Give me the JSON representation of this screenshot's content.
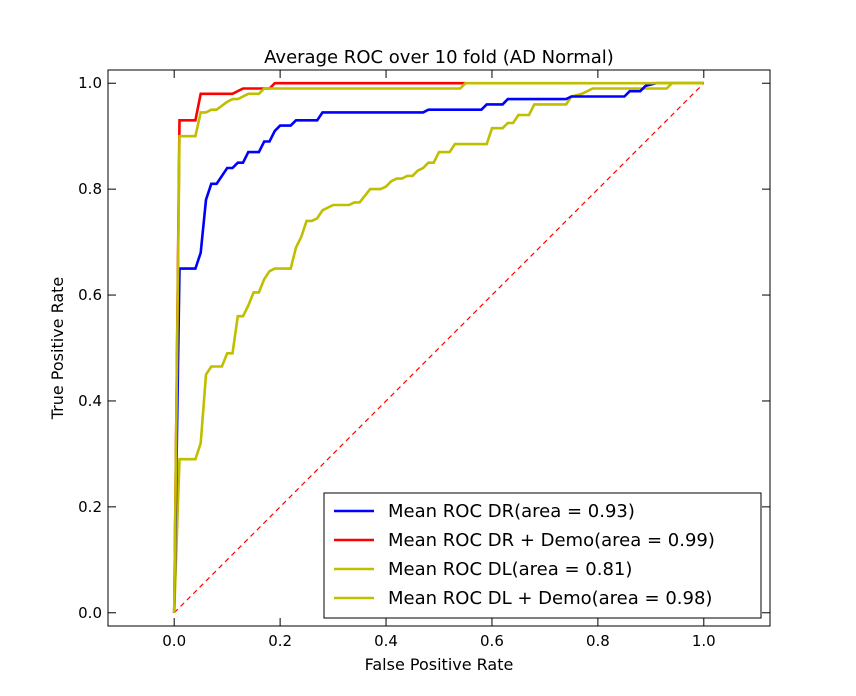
{
  "chart_data": {
    "type": "line",
    "title": "Average ROC over 10 fold (AD Normal)",
    "xlabel": "False Positive Rate",
    "ylabel": "True Positive Rate",
    "xlim": [
      -0.125,
      1.125
    ],
    "ylim": [
      -0.025,
      1.025
    ],
    "x_ticks": [
      "0.0",
      "0.2",
      "0.4",
      "0.6",
      "0.8",
      "1.0"
    ],
    "y_ticks": [
      "0.0",
      "0.2",
      "0.4",
      "0.6",
      "0.8",
      "1.0"
    ],
    "grid": false,
    "legend_position": "lower-right",
    "diagonal": {
      "points": [
        [
          0,
          0
        ],
        [
          1,
          1
        ]
      ],
      "color": "#ff0000",
      "style": "dashed"
    },
    "series": [
      {
        "name": "Mean ROC DR(area = 0.93)",
        "color": "#0000ff",
        "points": [
          [
            0,
            0
          ],
          [
            0.01,
            0.65
          ],
          [
            0.04,
            0.65
          ],
          [
            0.05,
            0.68
          ],
          [
            0.06,
            0.78
          ],
          [
            0.07,
            0.81
          ],
          [
            0.08,
            0.81
          ],
          [
            0.1,
            0.84
          ],
          [
            0.11,
            0.84
          ],
          [
            0.12,
            0.85
          ],
          [
            0.13,
            0.85
          ],
          [
            0.14,
            0.87
          ],
          [
            0.16,
            0.87
          ],
          [
            0.17,
            0.89
          ],
          [
            0.18,
            0.89
          ],
          [
            0.19,
            0.91
          ],
          [
            0.2,
            0.92
          ],
          [
            0.22,
            0.92
          ],
          [
            0.23,
            0.93
          ],
          [
            0.27,
            0.93
          ],
          [
            0.28,
            0.945
          ],
          [
            0.47,
            0.945
          ],
          [
            0.48,
            0.95
          ],
          [
            0.58,
            0.95
          ],
          [
            0.59,
            0.96
          ],
          [
            0.62,
            0.96
          ],
          [
            0.63,
            0.97
          ],
          [
            0.74,
            0.97
          ],
          [
            0.75,
            0.975
          ],
          [
            0.85,
            0.975
          ],
          [
            0.86,
            0.985
          ],
          [
            0.88,
            0.985
          ],
          [
            0.89,
            0.995
          ],
          [
            0.91,
            1.0
          ],
          [
            1.0,
            1.0
          ]
        ]
      },
      {
        "name": "Mean ROC DR + Demo(area = 0.99)",
        "color": "#ff0000",
        "points": [
          [
            0,
            0
          ],
          [
            0.01,
            0.93
          ],
          [
            0.04,
            0.93
          ],
          [
            0.05,
            0.98
          ],
          [
            0.11,
            0.98
          ],
          [
            0.13,
            0.99
          ],
          [
            0.18,
            0.99
          ],
          [
            0.19,
            1.0
          ],
          [
            0.55,
            1.0
          ]
        ]
      },
      {
        "name": "Mean ROC DL(area = 0.81)",
        "color": "#bfbf00",
        "points": [
          [
            0,
            0
          ],
          [
            0.01,
            0.29
          ],
          [
            0.04,
            0.29
          ],
          [
            0.05,
            0.32
          ],
          [
            0.06,
            0.45
          ],
          [
            0.07,
            0.465
          ],
          [
            0.09,
            0.465
          ],
          [
            0.1,
            0.49
          ],
          [
            0.11,
            0.49
          ],
          [
            0.12,
            0.56
          ],
          [
            0.13,
            0.56
          ],
          [
            0.14,
            0.58
          ],
          [
            0.15,
            0.605
          ],
          [
            0.16,
            0.605
          ],
          [
            0.17,
            0.63
          ],
          [
            0.18,
            0.645
          ],
          [
            0.19,
            0.65
          ],
          [
            0.22,
            0.65
          ],
          [
            0.23,
            0.69
          ],
          [
            0.24,
            0.71
          ],
          [
            0.25,
            0.74
          ],
          [
            0.26,
            0.74
          ],
          [
            0.27,
            0.745
          ],
          [
            0.28,
            0.76
          ],
          [
            0.3,
            0.77
          ],
          [
            0.33,
            0.77
          ],
          [
            0.34,
            0.775
          ],
          [
            0.35,
            0.775
          ],
          [
            0.37,
            0.8
          ],
          [
            0.39,
            0.8
          ],
          [
            0.4,
            0.805
          ],
          [
            0.41,
            0.815
          ],
          [
            0.42,
            0.82
          ],
          [
            0.43,
            0.82
          ],
          [
            0.44,
            0.825
          ],
          [
            0.45,
            0.825
          ],
          [
            0.46,
            0.835
          ],
          [
            0.47,
            0.84
          ],
          [
            0.48,
            0.85
          ],
          [
            0.49,
            0.85
          ],
          [
            0.5,
            0.87
          ],
          [
            0.52,
            0.87
          ],
          [
            0.53,
            0.885
          ],
          [
            0.59,
            0.885
          ],
          [
            0.6,
            0.915
          ],
          [
            0.62,
            0.915
          ],
          [
            0.63,
            0.925
          ],
          [
            0.64,
            0.925
          ],
          [
            0.65,
            0.94
          ],
          [
            0.67,
            0.94
          ],
          [
            0.68,
            0.96
          ],
          [
            0.74,
            0.96
          ],
          [
            0.75,
            0.975
          ],
          [
            0.77,
            0.98
          ],
          [
            0.79,
            0.99
          ],
          [
            0.93,
            0.99
          ],
          [
            0.94,
            1.0
          ],
          [
            1.0,
            1.0
          ]
        ]
      },
      {
        "name": "Mean ROC DL + Demo(area = 0.98)",
        "color": "#bfbf00",
        "points": [
          [
            0,
            0
          ],
          [
            0.01,
            0.9
          ],
          [
            0.04,
            0.9
          ],
          [
            0.05,
            0.945
          ],
          [
            0.06,
            0.945
          ],
          [
            0.07,
            0.95
          ],
          [
            0.08,
            0.95
          ],
          [
            0.1,
            0.965
          ],
          [
            0.11,
            0.97
          ],
          [
            0.12,
            0.97
          ],
          [
            0.14,
            0.98
          ],
          [
            0.16,
            0.98
          ],
          [
            0.17,
            0.99
          ],
          [
            0.54,
            0.99
          ],
          [
            0.55,
            1.0
          ],
          [
            1.0,
            1.0
          ]
        ]
      }
    ]
  }
}
